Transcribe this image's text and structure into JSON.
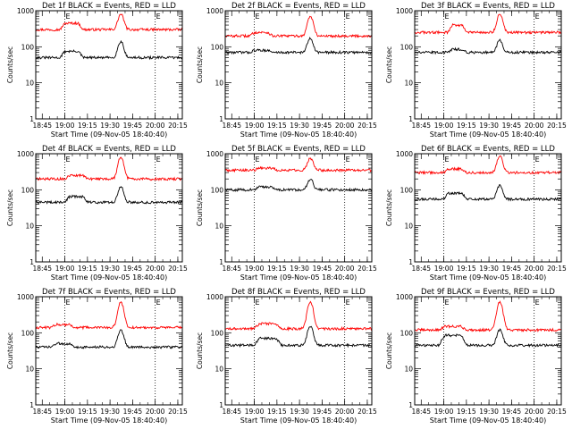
{
  "chart_data": {
    "type": "line",
    "layout": "3x3 grid",
    "y_scale": "log",
    "ylim": [
      1,
      1000
    ],
    "ylabel": "Counts/sec",
    "xlabel": "Start Time (09-Nov-05 18:40:40)",
    "x_tick_labels": [
      "18:45",
      "19:00",
      "19:15",
      "19:30",
      "19:45",
      "20:00",
      "20:15"
    ],
    "x_tick_hours": [
      18.75,
      19.0,
      19.25,
      19.5,
      19.75,
      20.0,
      20.25
    ],
    "xlim_hours": [
      18.678,
      20.3
    ],
    "y_tick_labels": [
      "1",
      "10",
      "100",
      "1000"
    ],
    "y_tick_values": [
      1,
      10,
      100,
      1000
    ],
    "dotted_vlines_hours": [
      19.0,
      20.0
    ],
    "marker_label": "E",
    "series_colors": {
      "events": "#000000",
      "lld": "#ff0000"
    },
    "series_names": {
      "events": "Events",
      "lld": "LLD"
    },
    "panels": [
      {
        "title": "Det 1f BLACK = Events, RED = LLD",
        "events_base": 50,
        "events_peak": 140,
        "lld_base": 300,
        "lld_peak": 800,
        "bump_hours": [
          18.95,
          19.2
        ],
        "bump_events": 75,
        "bump_lld": 450
      },
      {
        "title": "Det 2f BLACK = Events, RED = LLD",
        "events_base": 70,
        "events_peak": 170,
        "lld_base": 200,
        "lld_peak": 700,
        "bump_hours": [
          18.95,
          19.2
        ],
        "bump_events": 80,
        "bump_lld": 250
      },
      {
        "title": "Det 3f BLACK = Events, RED = LLD",
        "events_base": 70,
        "events_peak": 150,
        "lld_base": 250,
        "lld_peak": 800,
        "bump_hours": [
          19.05,
          19.25
        ],
        "bump_events": 85,
        "bump_lld": 400
      },
      {
        "title": "Det 4f BLACK = Events, RED = LLD",
        "events_base": 45,
        "events_peak": 120,
        "lld_base": 200,
        "lld_peak": 800,
        "bump_hours": [
          19.0,
          19.25
        ],
        "bump_events": 65,
        "bump_lld": 250
      },
      {
        "title": "Det 5f BLACK = Events, RED = LLD",
        "events_base": 100,
        "events_peak": 200,
        "lld_base": 350,
        "lld_peak": 750,
        "bump_hours": [
          19.0,
          19.25
        ],
        "bump_events": 120,
        "bump_lld": 400
      },
      {
        "title": "Det 6f BLACK = Events, RED = LLD",
        "events_base": 55,
        "events_peak": 130,
        "lld_base": 300,
        "lld_peak": 850,
        "bump_hours": [
          19.0,
          19.25
        ],
        "bump_events": 80,
        "bump_lld": 380
      },
      {
        "title": "Det 7f BLACK = Events, RED = LLD",
        "events_base": 40,
        "events_peak": 120,
        "lld_base": 140,
        "lld_peak": 700,
        "bump_hours": [
          18.85,
          19.1
        ],
        "bump_events": 50,
        "bump_lld": 170
      },
      {
        "title": "Det 8f BLACK = Events, RED = LLD",
        "events_base": 45,
        "events_peak": 150,
        "lld_base": 130,
        "lld_peak": 700,
        "bump_hours": [
          19.0,
          19.3
        ],
        "bump_events": 70,
        "bump_lld": 180
      },
      {
        "title": "Det 9f BLACK = Events, RED = LLD",
        "events_base": 45,
        "events_peak": 120,
        "lld_base": 120,
        "lld_peak": 700,
        "bump_hours": [
          18.95,
          19.25
        ],
        "bump_events": 85,
        "bump_lld": 150
      }
    ]
  }
}
